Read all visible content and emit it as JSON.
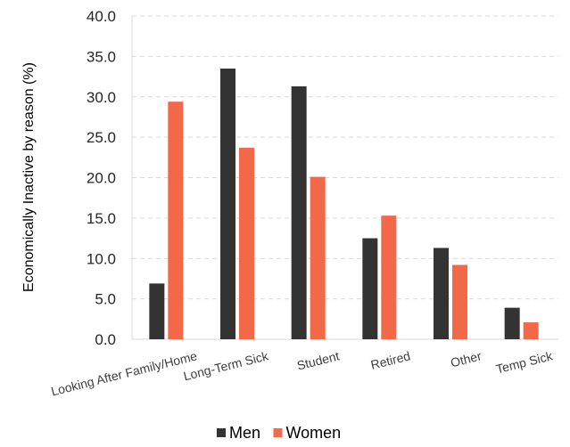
{
  "chart_data": {
    "type": "bar",
    "title": "",
    "xlabel": "",
    "ylabel": "Economically Inactive by reason (%)",
    "categories": [
      "Looking After Family/Home",
      "Long-Term Sick",
      "Student",
      "Retired",
      "Other",
      "Temp Sick"
    ],
    "series": [
      {
        "name": "Men",
        "color": "#333333",
        "values": [
          6.9,
          33.5,
          31.3,
          12.5,
          11.3,
          3.9
        ]
      },
      {
        "name": "Women",
        "color": "#f26849",
        "values": [
          29.4,
          23.7,
          20.1,
          15.3,
          9.2,
          2.1
        ]
      }
    ],
    "ylim": [
      0,
      40
    ],
    "yticks": [
      "0.0",
      "5.0",
      "10.0",
      "15.0",
      "20.0",
      "25.0",
      "30.0",
      "35.0",
      "40.0"
    ],
    "grid": true,
    "legend_position": "bottom"
  }
}
